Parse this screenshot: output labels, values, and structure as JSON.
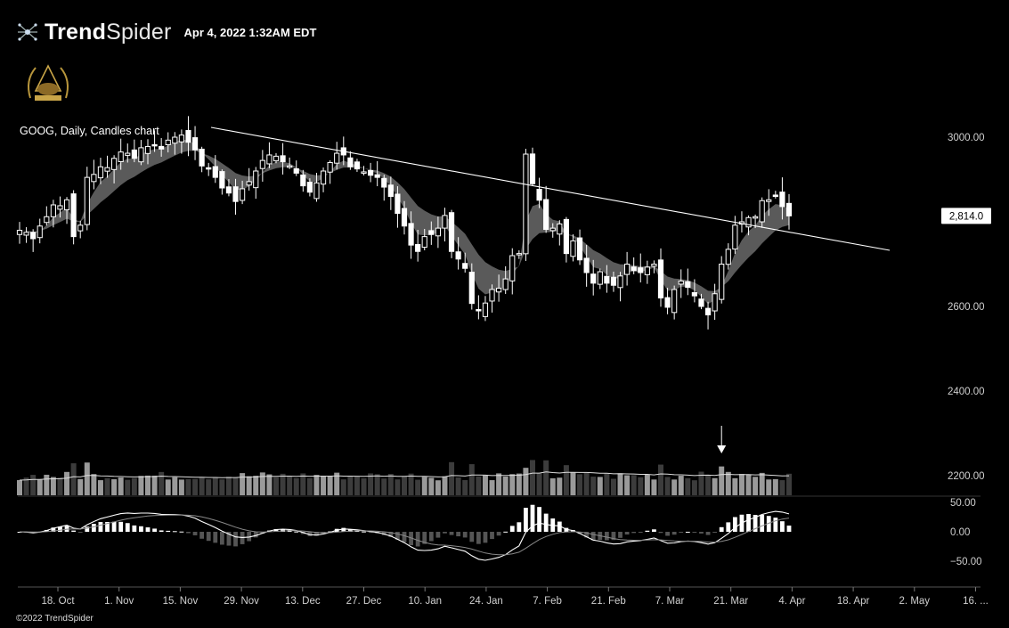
{
  "header": {
    "brand_bold": "Trend",
    "brand_light": "Spider",
    "timestamp": "Apr 4, 2022 1:32AM EDT"
  },
  "footer": {
    "copyright": "©2022 TrendSpider"
  },
  "colors": {
    "background": "#000000",
    "up": "#ffffff",
    "ribbon": "#666666",
    "trendline": "#ffffff"
  },
  "chart_data": {
    "type": "candlestick",
    "title": "GOOG, Daily, Candles chart",
    "symbol": "GOOG",
    "last_price_label": "2,814.0",
    "last_price": 2814.0,
    "price_axis": {
      "ticks": [
        3000,
        2600,
        2400,
        2200
      ],
      "tick_labels": [
        "3000.00",
        "2600.00",
        "2400.00",
        "2200.00"
      ],
      "ylim": [
        2160,
        3060
      ]
    },
    "oscillator_axis": {
      "ticks": [
        50,
        0,
        -50
      ],
      "tick_labels": [
        "50.00",
        "0.00",
        "−50.00"
      ]
    },
    "x_ticks": [
      "18. Oct",
      "1. Nov",
      "15. Nov",
      "29. Nov",
      "13. Dec",
      "27. Dec",
      "10. Jan",
      "24. Jan",
      "7. Feb",
      "21. Feb",
      "7. Mar",
      "21. Mar",
      "4. Apr",
      "18. Apr",
      "2. May",
      "16. ..."
    ],
    "trendline": {
      "start": [
        "2021-11-19",
        3025
      ],
      "end": [
        "2022-04-08",
        2728
      ]
    },
    "candles_close": [
      2780,
      2775,
      2760,
      2790,
      2812,
      2840,
      2838,
      2852,
      2765,
      2792,
      2905,
      2912,
      2930,
      2928,
      2950,
      2965,
      2962,
      2950,
      2975,
      2978,
      2980,
      2972,
      2993,
      3000,
      3005,
      2988,
      2970,
      2932,
      2925,
      2905,
      2880,
      2868,
      2848,
      2878,
      2895,
      2920,
      2945,
      2958,
      2955,
      2942,
      2932,
      2915,
      2885,
      2870,
      2892,
      2920,
      2940,
      2962,
      2958,
      2930,
      2925,
      2918,
      2910,
      2905,
      2882,
      2860,
      2820,
      2790,
      2745,
      2730,
      2765,
      2770,
      2785,
      2815,
      2730,
      2712,
      2690,
      2607,
      2590,
      2608,
      2640,
      2643,
      2665,
      2720,
      2725,
      2960,
      2890,
      2851,
      2782,
      2785,
      2795,
      2725,
      2755,
      2710,
      2680,
      2655,
      2682,
      2655,
      2650,
      2672,
      2700,
      2685,
      2680,
      2693,
      2700,
      2620,
      2598,
      2640,
      2660,
      2645,
      2625,
      2600,
      2580,
      2630,
      2700,
      2735,
      2792,
      2800,
      2810,
      2812,
      2850,
      2852,
      2860,
      2836,
      2814
    ],
    "volume_note": "volume bars with moving-average line; arrow marker on 21 Mar bar",
    "oscillator_note": "MACD-style histogram with two signal lines"
  }
}
